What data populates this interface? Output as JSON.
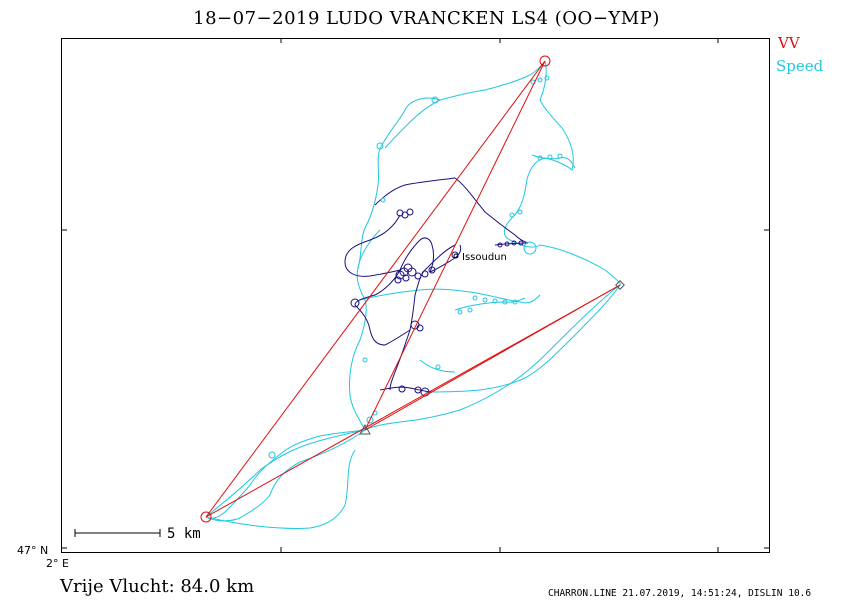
{
  "header": {
    "title": "18−07−2019    LUDO VRANCKEN    LS4 (OO−YMP)"
  },
  "legend": {
    "vv_label": "VV",
    "vv_color": "#e01010",
    "speed_label": "Speed",
    "speed_color": "#20c8e0"
  },
  "map": {
    "latitude_label": "47° N",
    "longitude_label": "2° E",
    "scale_label": "5 km",
    "town_label": "Issoudun",
    "track_color_climb": "#1a1080",
    "task_line_color": "#e01010"
  },
  "summary": {
    "distance_text": "Vrije Vlucht:   84.0 km"
  },
  "footer": {
    "text": "CHARRON.LINE 21.07.2019, 14:51:24, DISLIN 10.6"
  }
}
